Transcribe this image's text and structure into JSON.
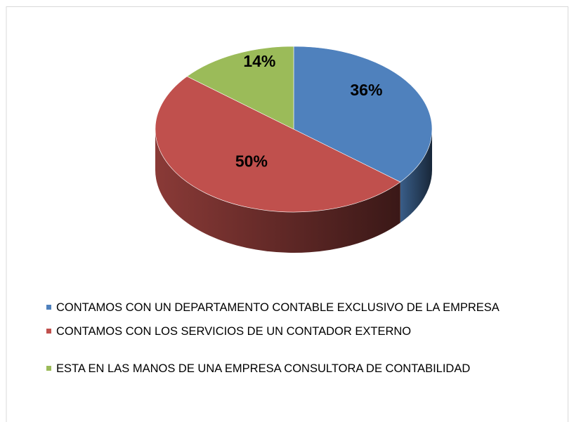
{
  "chart_data": {
    "type": "pie",
    "categories": [
      "CONTAMOS CON UN DEPARTAMENTO CONTABLE EXCLUSIVO DE LA EMPRESA",
      "CONTAMOS CON LOS SERVICIOS DE UN CONTADOR EXTERNO",
      "ESTA EN LAS MANOS DE UNA EMPRESA CONSULTORA DE CONTABILIDAD"
    ],
    "values": [
      36,
      50,
      14
    ],
    "value_labels": [
      "36%",
      "50%",
      "14%"
    ],
    "colors": [
      "#4f81bd",
      "#c0504d",
      "#9bbb59"
    ],
    "legend": "bottom"
  }
}
